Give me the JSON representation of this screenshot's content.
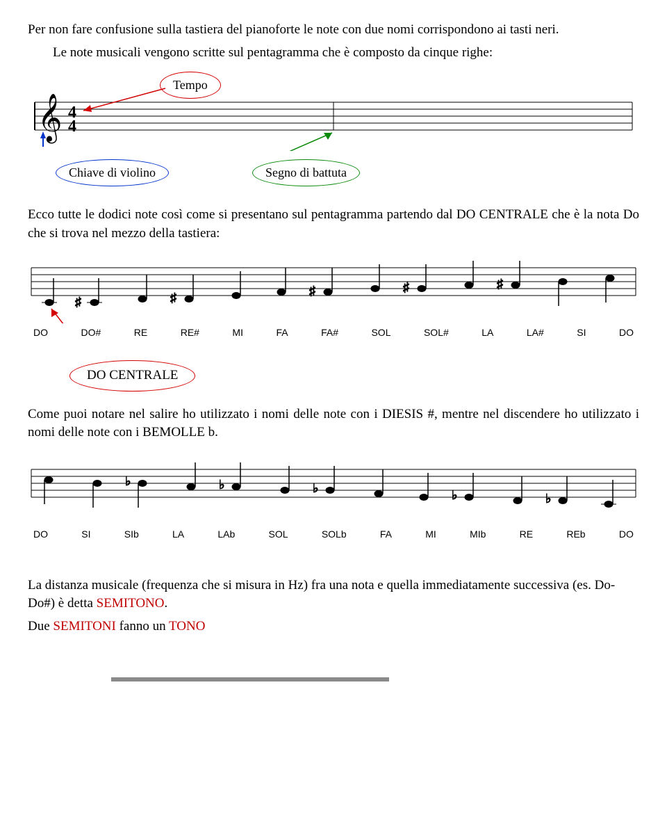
{
  "para1": "Per non fare confusione sulla tastiera del pianoforte le note con due nomi corrispondono ai tasti neri.",
  "para2": "Le note musicali vengono scritte sul pentagramma che è composto da cinque righe:",
  "callouts": {
    "tempo": "Tempo",
    "chiave": "Chiave di violino",
    "segno": "Segno di battuta"
  },
  "para3": "Ecco tutte le dodici note così come si presentano sul pentagramma partendo dal DO CENTRALE che è la nota Do che si trova nel mezzo della tastiera:",
  "ascending_notes": [
    "DO",
    "DO#",
    "RE",
    "RE#",
    "MI",
    "FA",
    "FA#",
    "SOL",
    "SOL#",
    "LA",
    "LA#",
    "SI",
    "DO"
  ],
  "do_centrale_label": "DO CENTRALE",
  "para4": "Come puoi notare nel salire ho utilizzato i nomi delle note con i DIESIS #, mentre nel discendere ho utilizzato i nomi delle note con i BEMOLLE b.",
  "descending_notes": [
    "DO",
    "SI",
    "SIb",
    "LA",
    "LAb",
    "SOL",
    "SOLb",
    "FA",
    "MI",
    "MIb",
    "RE",
    "REb",
    "DO"
  ],
  "para5a": "La distanza musicale (frequenza che si misura in Hz) fra una nota e quella immediatamente successiva (es. Do-Do#) è detta ",
  "para5b": "SEMITONO",
  "para6a": "Due ",
  "para6b": "SEMITONI",
  "para6c": " fanno un ",
  "para6d": "TONO",
  "svg": {
    "staff_color": "#000000",
    "callout_red": "#d40000",
    "callout_green": "#0b8a0b",
    "callout_blue": "#0033cc"
  }
}
